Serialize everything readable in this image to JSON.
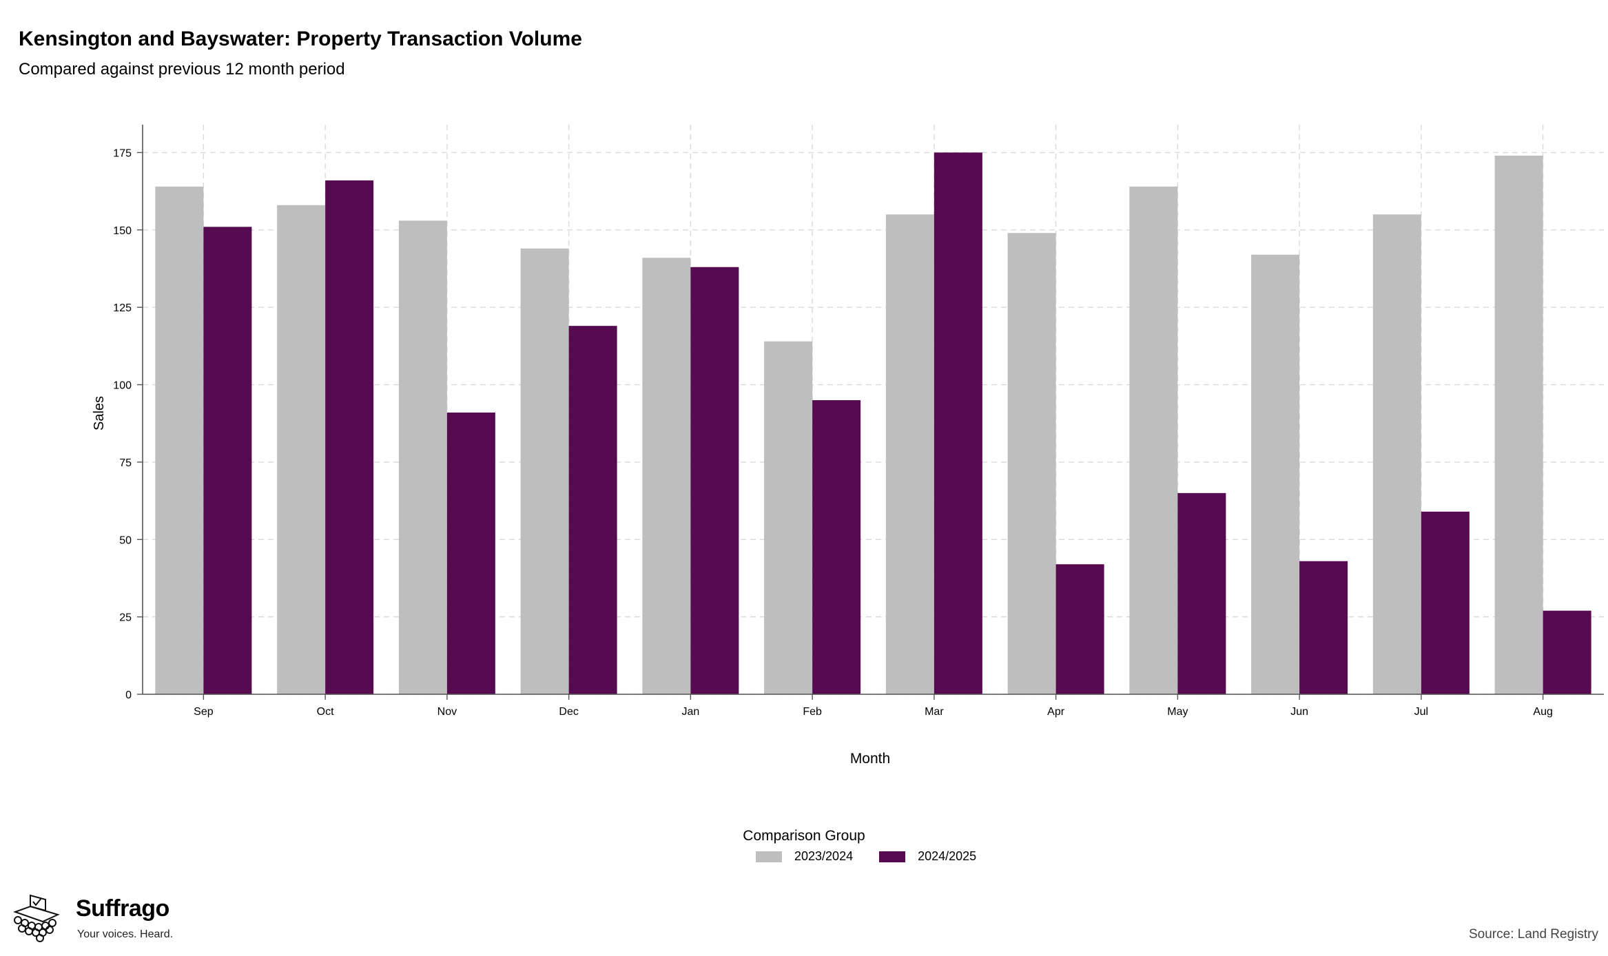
{
  "header": {
    "title": "Kensington and Bayswater: Property Transaction Volume",
    "subtitle": "Compared against previous 12 month period"
  },
  "footer": {
    "brand": "Suffrago",
    "tagline": "Your voices. Heard.",
    "source": "Source: Land Registry"
  },
  "legend": {
    "title": "Comparison Group",
    "items": [
      {
        "label": "2023/2024",
        "color": "#bebebe"
      },
      {
        "label": "2024/2025",
        "color": "#560b50"
      }
    ]
  },
  "chart_data": {
    "type": "bar",
    "title": "Kensington and Bayswater: Property Transaction Volume",
    "subtitle": "Compared against previous 12 month period",
    "xlabel": "Month",
    "ylabel": "Sales",
    "ylim": [
      0,
      184
    ],
    "yticks": [
      0,
      25,
      50,
      75,
      100,
      125,
      150,
      175
    ],
    "grid": true,
    "legend_position": "bottom",
    "categories": [
      "Sep",
      "Oct",
      "Nov",
      "Dec",
      "Jan",
      "Feb",
      "Mar",
      "Apr",
      "May",
      "Jun",
      "Jul",
      "Aug"
    ],
    "series": [
      {
        "name": "2023/2024",
        "color": "#bebebe",
        "values": [
          164,
          158,
          153,
          144,
          141,
          114,
          155,
          149,
          164,
          142,
          155,
          174
        ]
      },
      {
        "name": "2024/2025",
        "color": "#560b50",
        "values": [
          151,
          166,
          91,
          119,
          138,
          95,
          175,
          42,
          65,
          43,
          59,
          27
        ]
      }
    ]
  }
}
